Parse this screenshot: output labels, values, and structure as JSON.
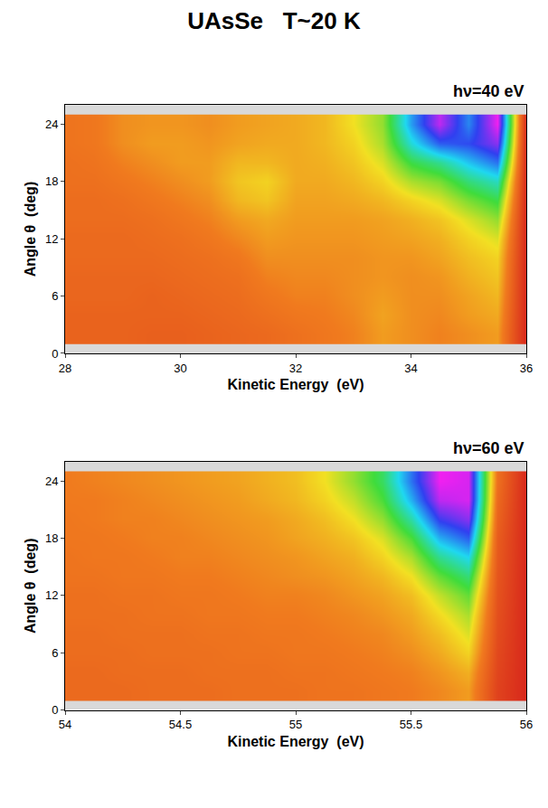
{
  "title": "UAsSe   T~20 K",
  "chart_data": [
    {
      "type": "heatmap",
      "annotations": [
        "hν=40 eV"
      ],
      "x_label": "Kinetic Energy  (eV)",
      "y_label": "Angle θ  (deg)",
      "x": [
        28,
        28.5,
        29,
        29.5,
        30,
        30.5,
        31,
        31.5,
        32,
        32.5,
        33,
        33.5,
        34,
        34.5,
        35,
        35.5,
        36
      ],
      "y": [
        2,
        4,
        6,
        8,
        10,
        12,
        14,
        16,
        18,
        20,
        22,
        24
      ],
      "z": [
        [
          18,
          18,
          18,
          17,
          17,
          18,
          19,
          20,
          22,
          24,
          26,
          30,
          28,
          26,
          28,
          30,
          0
        ],
        [
          18,
          18,
          18,
          18,
          18,
          19,
          20,
          22,
          24,
          25,
          27,
          31,
          28,
          27,
          30,
          32,
          0
        ],
        [
          19,
          19,
          19,
          18,
          19,
          20,
          21,
          24,
          26,
          26,
          28,
          30,
          28,
          28,
          31,
          34,
          0
        ],
        [
          19,
          19,
          19,
          19,
          20,
          21,
          22,
          26,
          27,
          27,
          28,
          29,
          28,
          29,
          33,
          36,
          0
        ],
        [
          20,
          20,
          20,
          20,
          21,
          22,
          24,
          28,
          28,
          28,
          28,
          29,
          29,
          31,
          35,
          38,
          0
        ],
        [
          20,
          20,
          20,
          21,
          22,
          24,
          27,
          30,
          29,
          29,
          29,
          30,
          31,
          33,
          38,
          42,
          0
        ],
        [
          21,
          21,
          21,
          22,
          24,
          26,
          30,
          32,
          30,
          30,
          30,
          31,
          33,
          36,
          42,
          48,
          0
        ],
        [
          21,
          21,
          22,
          24,
          26,
          28,
          34,
          36,
          31,
          31,
          32,
          34,
          38,
          42,
          50,
          56,
          0
        ],
        [
          22,
          22,
          24,
          26,
          28,
          30,
          36,
          38,
          32,
          32,
          34,
          38,
          46,
          50,
          60,
          66,
          0
        ],
        [
          22,
          23,
          26,
          28,
          30,
          30,
          34,
          34,
          32,
          33,
          36,
          42,
          56,
          62,
          72,
          80,
          0
        ],
        [
          23,
          24,
          28,
          30,
          30,
          29,
          31,
          32,
          32,
          34,
          38,
          46,
          68,
          82,
          84,
          92,
          0
        ],
        [
          23,
          24,
          28,
          29,
          29,
          28,
          30,
          31,
          32,
          34,
          40,
          48,
          76,
          96,
          78,
          100,
          0
        ]
      ],
      "xlim": [
        28,
        36
      ],
      "xticks": [
        28,
        30,
        32,
        34,
        36
      ],
      "ylim": [
        0,
        26
      ],
      "yticks": [
        0,
        6,
        12,
        18,
        24
      ]
    },
    {
      "type": "heatmap",
      "annotations": [
        "hν=60 eV"
      ],
      "x_label": "Kinetic Energy  (eV)",
      "y_label": "Angle θ  (deg)",
      "x": [
        54,
        54.125,
        54.25,
        54.375,
        54.5,
        54.625,
        54.75,
        54.875,
        55,
        55.125,
        55.25,
        55.375,
        55.5,
        55.625,
        55.75,
        55.875,
        56
      ],
      "y": [
        2,
        4,
        6,
        8,
        10,
        12,
        14,
        16,
        18,
        20,
        22,
        24
      ],
      "z": [
        [
          20,
          20,
          20,
          21,
          21,
          21,
          22,
          22,
          22,
          23,
          23,
          24,
          25,
          27,
          30,
          8,
          0
        ],
        [
          20,
          20,
          21,
          21,
          21,
          22,
          22,
          22,
          23,
          23,
          24,
          25,
          26,
          29,
          33,
          9,
          0
        ],
        [
          21,
          21,
          21,
          22,
          22,
          22,
          23,
          23,
          24,
          24,
          25,
          26,
          28,
          32,
          38,
          10,
          0
        ],
        [
          21,
          21,
          22,
          22,
          22,
          23,
          23,
          24,
          24,
          25,
          26,
          27,
          30,
          35,
          42,
          11,
          0
        ],
        [
          22,
          22,
          22,
          23,
          23,
          24,
          24,
          25,
          25,
          26,
          27,
          29,
          32,
          39,
          46,
          12,
          0
        ],
        [
          22,
          22,
          23,
          23,
          24,
          24,
          25,
          26,
          26,
          27,
          29,
          31,
          35,
          44,
          52,
          13,
          0
        ],
        [
          23,
          23,
          24,
          24,
          25,
          25,
          26,
          27,
          28,
          29,
          31,
          34,
          40,
          52,
          60,
          14,
          0
        ],
        [
          23,
          24,
          24,
          25,
          26,
          26,
          27,
          28,
          29,
          31,
          33,
          38,
          46,
          62,
          70,
          15,
          0
        ],
        [
          24,
          24,
          25,
          26,
          26,
          27,
          28,
          29,
          31,
          33,
          36,
          42,
          54,
          74,
          82,
          16,
          0
        ],
        [
          24,
          25,
          26,
          26,
          27,
          28,
          29,
          30,
          32,
          35,
          40,
          48,
          64,
          86,
          92,
          18,
          0
        ],
        [
          25,
          25,
          26,
          27,
          28,
          29,
          30,
          32,
          34,
          38,
          44,
          54,
          74,
          96,
          98,
          20,
          0
        ],
        [
          25,
          26,
          27,
          28,
          29,
          30,
          31,
          33,
          35,
          40,
          48,
          58,
          80,
          100,
          98,
          22,
          0
        ]
      ],
      "xlim": [
        54,
        56
      ],
      "xticks": [
        54,
        54.5,
        55,
        55.5,
        56
      ],
      "ylim": [
        0,
        26
      ],
      "yticks": [
        0,
        6,
        12,
        18,
        24
      ]
    }
  ]
}
